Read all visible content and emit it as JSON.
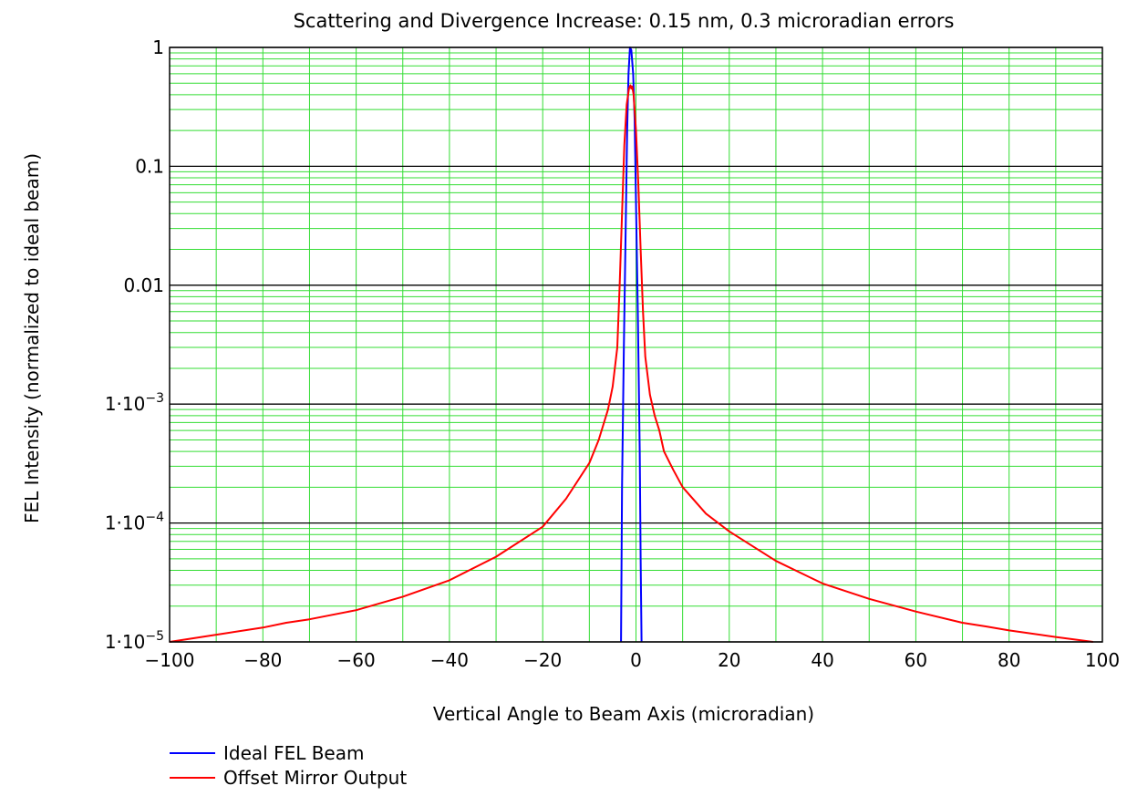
{
  "chart_data": {
    "type": "line",
    "title": "Scattering and Divergence Increase: 0.15 nm, 0.3 microradian errors",
    "xlabel": "Vertical Angle to Beam Axis (microradian)",
    "ylabel": "FEL Intensity (normalized to ideal beam)",
    "xlim": [
      -100,
      100
    ],
    "ylim": [
      1e-05,
      1
    ],
    "yscale": "log",
    "grid": true,
    "x_ticks": [
      "−100",
      "−80",
      "−60",
      "−40",
      "−20",
      "0",
      "20",
      "40",
      "60",
      "80",
      "100"
    ],
    "y_ticks": [
      {
        "value": 1,
        "base": "1",
        "exp": ""
      },
      {
        "value": 0.1,
        "base": "0.1",
        "exp": ""
      },
      {
        "value": 0.01,
        "base": "0.01",
        "exp": ""
      },
      {
        "value": 0.001,
        "base": "1·10",
        "exp": "−3"
      },
      {
        "value": 0.0001,
        "base": "1·10",
        "exp": "−4"
      },
      {
        "value": 1e-05,
        "base": "1·10",
        "exp": "−5"
      }
    ],
    "legend_position": "bottom-left",
    "series": [
      {
        "name": "Ideal FEL Beam",
        "color": "#0000ff",
        "x": [
          -3.2,
          -3.0,
          -2.6,
          -2.2,
          -1.9,
          -1.6,
          -1.3,
          -1.0,
          -0.6,
          -0.3,
          0.0,
          0.4,
          0.8,
          1.0,
          1.2
        ],
        "y": [
          1e-05,
          0.0002,
          0.003,
          0.03,
          0.2,
          0.6,
          1.0,
          0.95,
          0.6,
          0.25,
          0.05,
          0.006,
          0.0004,
          5e-05,
          1e-05
        ]
      },
      {
        "name": "Offset Mirror Output",
        "color": "#ff0000",
        "x": [
          -100,
          -90,
          -80,
          -75,
          -70,
          -60,
          -50,
          -40,
          -30,
          -20,
          -15,
          -10,
          -8,
          -6,
          -5,
          -4,
          -3.5,
          -3,
          -2.5,
          -2,
          -1.5,
          -1.2,
          -1,
          -0.8,
          -0.5,
          0,
          0.5,
          1,
          1.5,
          2,
          3,
          4,
          5,
          6,
          8,
          10,
          15,
          20,
          30,
          40,
          50,
          60,
          70,
          75,
          80,
          90,
          98
        ],
        "y": [
          1e-05,
          1.15e-05,
          1.32e-05,
          1.45e-05,
          1.55e-05,
          1.85e-05,
          2.4e-05,
          3.3e-05,
          5.2e-05,
          9.3e-05,
          0.00016,
          0.00032,
          0.0005,
          0.0009,
          0.0014,
          0.003,
          0.01,
          0.04,
          0.15,
          0.33,
          0.45,
          0.48,
          0.45,
          0.47,
          0.4,
          0.2,
          0.07,
          0.02,
          0.006,
          0.0025,
          0.0012,
          0.0008,
          0.0006,
          0.0004,
          0.00028,
          0.0002,
          0.00012,
          8.5e-05,
          4.8e-05,
          3.1e-05,
          2.3e-05,
          1.8e-05,
          1.45e-05,
          1.35e-05,
          1.25e-05,
          1.1e-05,
          1e-05
        ]
      }
    ]
  }
}
